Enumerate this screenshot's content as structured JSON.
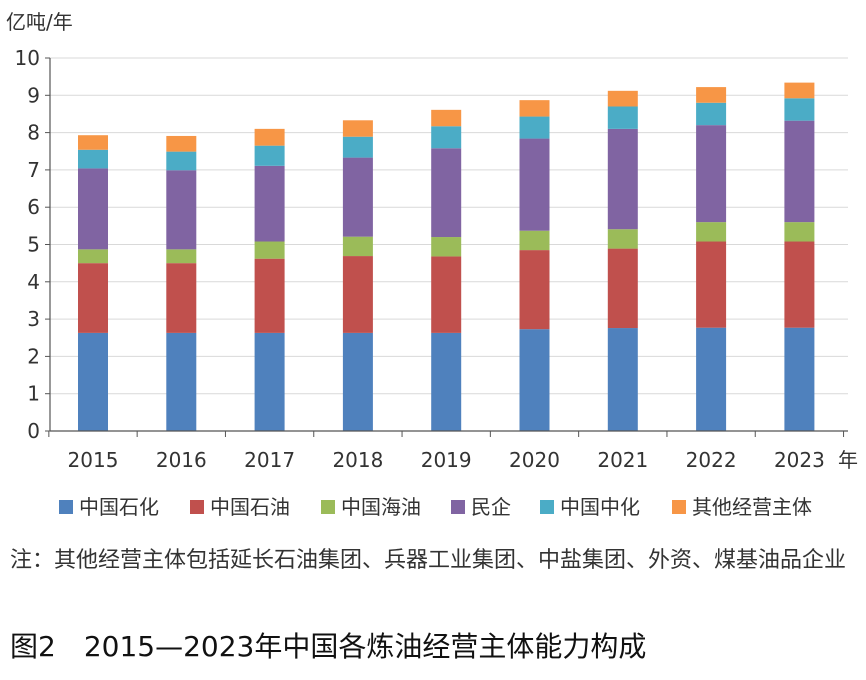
{
  "chart_data": {
    "type": "bar",
    "stacked": true,
    "ylabel": "亿吨/年",
    "xlabel": "年",
    "ylim": [
      0,
      10
    ],
    "yticks": [
      0,
      1,
      2,
      3,
      4,
      5,
      6,
      7,
      8,
      9,
      10
    ],
    "grid": true,
    "legend_position": "bottom",
    "categories": [
      "2015",
      "2016",
      "2017",
      "2018",
      "2019",
      "2020",
      "2021",
      "2022",
      "2023"
    ],
    "series": [
      {
        "name": "中国石化",
        "color": "#4f81bd",
        "values": [
          2.63,
          2.63,
          2.63,
          2.63,
          2.63,
          2.73,
          2.76,
          2.77,
          2.77
        ]
      },
      {
        "name": "中国石油",
        "color": "#c0504d",
        "values": [
          1.87,
          1.87,
          1.99,
          2.06,
          2.05,
          2.12,
          2.13,
          2.31,
          2.31
        ]
      },
      {
        "name": "中国海油",
        "color": "#9bbb59",
        "values": [
          0.37,
          0.37,
          0.46,
          0.52,
          0.52,
          0.52,
          0.52,
          0.52,
          0.52
        ]
      },
      {
        "name": "民企",
        "color": "#8064a2",
        "values": [
          2.17,
          2.12,
          2.03,
          2.12,
          2.38,
          2.47,
          2.69,
          2.6,
          2.72
        ]
      },
      {
        "name": "中国中化",
        "color": "#4bacc6",
        "values": [
          0.5,
          0.5,
          0.54,
          0.56,
          0.59,
          0.59,
          0.6,
          0.6,
          0.6
        ]
      },
      {
        "name": "其他经营主体",
        "color": "#f79646",
        "values": [
          0.39,
          0.42,
          0.45,
          0.44,
          0.44,
          0.44,
          0.42,
          0.42,
          0.42
        ]
      }
    ]
  },
  "note": "注：其他经营主体包括延长石油集团、兵器工业集团、中盐集团、外资、煤基油品企业",
  "caption": "图2　2015—2023年中国各炼油经营主体能力构成"
}
